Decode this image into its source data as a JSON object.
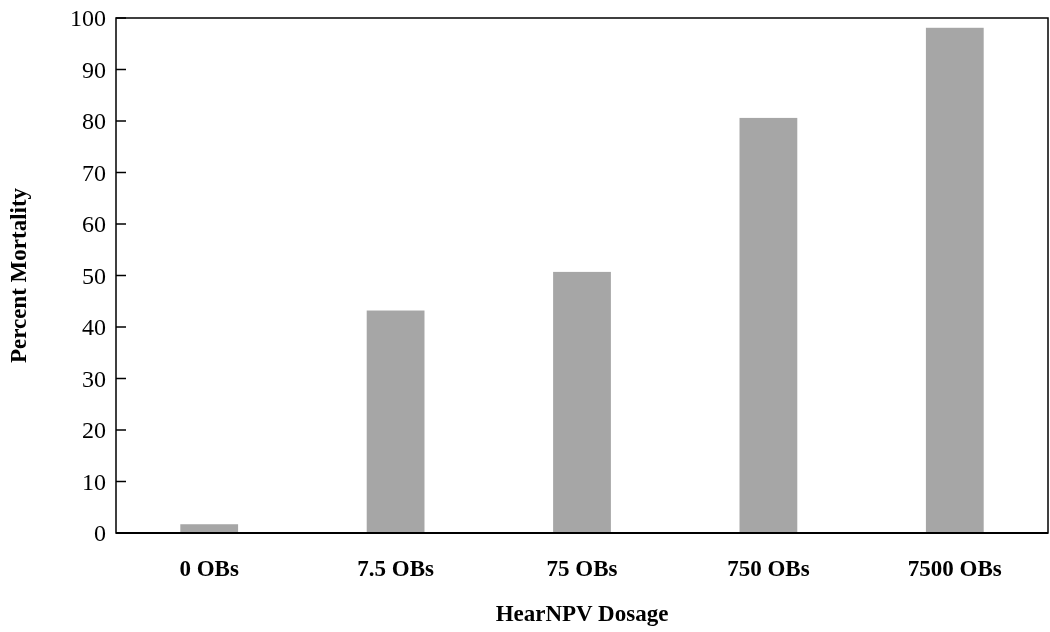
{
  "chart_data": {
    "type": "bar",
    "xlabel": "HearNPV Dosage",
    "ylabel": "Percent Mortality",
    "categories": [
      "0 OBs",
      "7.5 OBs",
      "75 OBs",
      "750 OBs",
      "7500 OBs"
    ],
    "values": [
      1.7,
      43.2,
      50.7,
      80.6,
      98.1
    ],
    "color": "#a6a6a6",
    "ylim": [
      0,
      100
    ],
    "yticks": [
      0,
      10,
      20,
      30,
      40,
      50,
      60,
      70,
      80,
      90,
      100
    ]
  }
}
